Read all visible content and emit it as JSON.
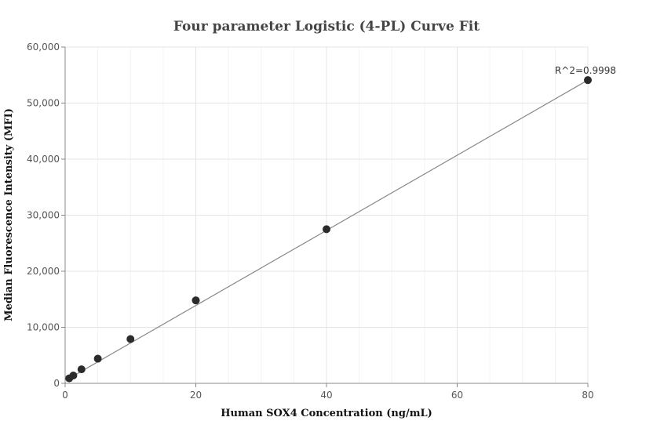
{
  "chart_data": {
    "type": "scatter",
    "title": "Four parameter Logistic (4-PL) Curve Fit",
    "xlabel": "Human SOX4 Concentration (ng/mL)",
    "ylabel": "Median Fluorescence Intensity (MFI)",
    "xlim": [
      0,
      80
    ],
    "ylim": [
      0,
      60000
    ],
    "x_ticks": [
      0,
      20,
      40,
      60,
      80
    ],
    "x_tick_labels": [
      "0",
      "20",
      "40",
      "60",
      "80"
    ],
    "y_ticks": [
      0,
      10000,
      20000,
      30000,
      40000,
      50000,
      60000
    ],
    "y_tick_labels": [
      "0",
      "10,000",
      "20,000",
      "30,000",
      "40,000",
      "50,000",
      "60,000"
    ],
    "grid": true,
    "series": [
      {
        "x": [
          0.625,
          1.25,
          2.5,
          5,
          10,
          20,
          40,
          80
        ],
        "y": [
          900,
          1400,
          2500,
          4400,
          7900,
          14800,
          27500,
          54100
        ]
      }
    ],
    "fit_line": {
      "x": [
        0.625,
        80
      ],
      "y": [
        900,
        54100
      ]
    },
    "annotations": [
      {
        "text": "R^2=0.9998",
        "x": 80,
        "y": 54100
      }
    ],
    "colors": {
      "points": "#2b2b2b",
      "fit_line": "#888888",
      "grid": "#e4e4e4",
      "title": "#444444"
    }
  }
}
